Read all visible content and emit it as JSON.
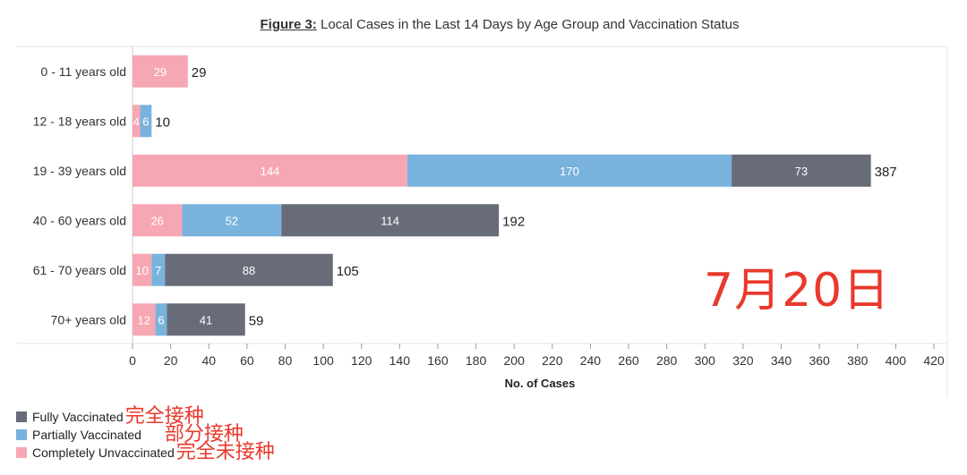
{
  "title_label": "Figure 3:",
  "title_text": " Local Cases in the Last 14 Days by Age Group and Vaccination Status",
  "stamp_text": "7月20日",
  "legend": [
    {
      "label": "Fully Vaccinated",
      "note": "完全接种",
      "color": "#676c78"
    },
    {
      "label": "Partially Vaccinated",
      "note": "部分接种",
      "color": "#79b3dd"
    },
    {
      "label": "Completely Unvaccinated",
      "note": "完全未接种",
      "color": "#f7a7b3"
    }
  ],
  "chart_data": {
    "type": "bar",
    "orientation": "horizontal",
    "stacked": true,
    "xlabel": "No. of Cases",
    "xlim": [
      0,
      420
    ],
    "xticks": [
      0,
      20,
      40,
      60,
      80,
      100,
      120,
      140,
      160,
      180,
      200,
      220,
      240,
      260,
      280,
      300,
      320,
      340,
      360,
      380,
      400,
      420
    ],
    "categories": [
      "0 - 11 years old",
      "12 - 18 years old",
      "19 - 39 years old",
      "40 - 60 years old",
      "61 - 70 years old",
      "70+ years old"
    ],
    "series": [
      {
        "name": "Completely Unvaccinated",
        "color": "#f7a7b3",
        "values": [
          29,
          4,
          144,
          26,
          10,
          12
        ]
      },
      {
        "name": "Partially Vaccinated",
        "color": "#79b3dd",
        "values": [
          0,
          6,
          170,
          52,
          7,
          6
        ]
      },
      {
        "name": "Fully Vaccinated",
        "color": "#676c78",
        "values": [
          0,
          0,
          73,
          114,
          88,
          41
        ]
      }
    ],
    "totals": [
      29,
      10,
      387,
      192,
      105,
      59
    ],
    "grid": false
  }
}
